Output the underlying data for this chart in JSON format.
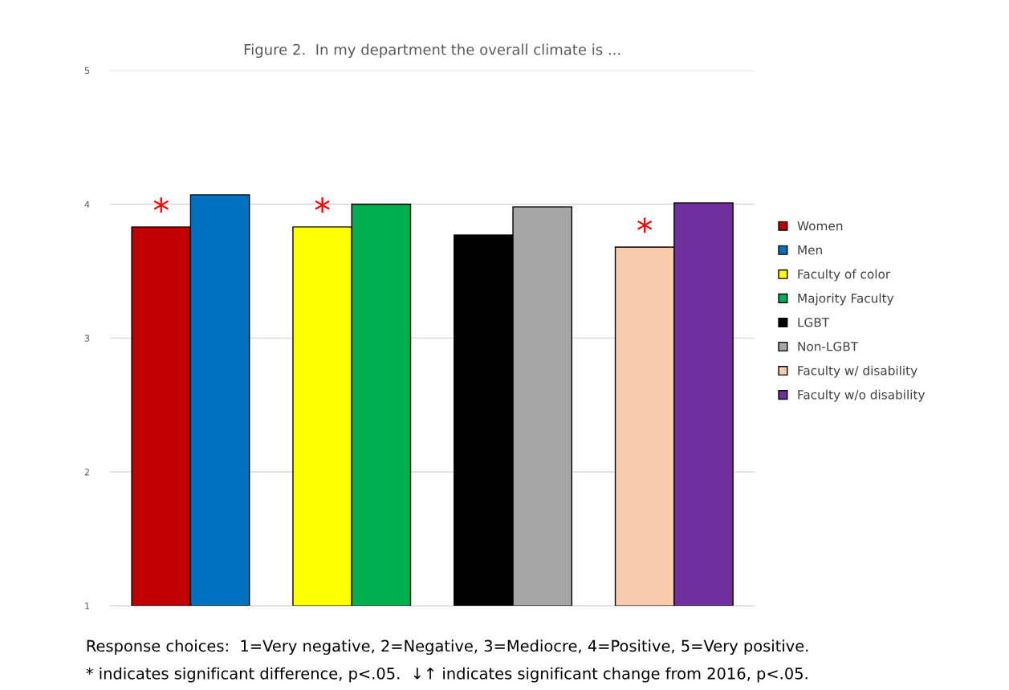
{
  "chart_data": {
    "type": "bar",
    "title": "Figure 2.  In my department the overall climate is ...",
    "categories": [
      null,
      null,
      null,
      null
    ],
    "series": [
      {
        "name": "Women",
        "color": "#c00000",
        "values": [
          3.83,
          null,
          null,
          null
        ],
        "value_labels": [
          "*",
          null,
          null,
          null
        ]
      },
      {
        "name": "Men",
        "color": "#0070c0",
        "values": [
          4.07,
          null,
          null,
          null
        ]
      },
      {
        "name": "Faculty of color",
        "color": "#ffff00",
        "values": [
          null,
          3.83,
          null,
          null
        ],
        "value_labels": [
          null,
          "*",
          null,
          null
        ]
      },
      {
        "name": "Majority Faculty",
        "color": "#00b050",
        "values": [
          null,
          4.0,
          null,
          null
        ]
      },
      {
        "name": "LGBT",
        "color": "#000000",
        "values": [
          null,
          null,
          3.77,
          null
        ]
      },
      {
        "name": "Non-LGBT",
        "color": "#a6a6a6",
        "values": [
          null,
          null,
          3.98,
          null
        ]
      },
      {
        "name": "Faculty w/ disability",
        "color": "#f8cbad",
        "values": [
          null,
          null,
          null,
          3.68
        ],
        "value_labels": [
          null,
          null,
          null,
          "*"
        ]
      },
      {
        "name": "Faculty w/o disability",
        "color": "#7030a0",
        "values": [
          null,
          null,
          null,
          4.01
        ]
      }
    ],
    "ylim": [
      1,
      5
    ],
    "yticks": [
      1,
      2,
      3,
      4,
      5
    ],
    "grid": "y",
    "legend": "right",
    "annotations": [
      "Response choices:  1=Very negative, 2=Negative, 3=Mediocre, 4=Positive, 5=Very positive.",
      "* indicates significant difference, p<.05.  ↓↑ indicates significant change from 2016, p<.05."
    ]
  }
}
